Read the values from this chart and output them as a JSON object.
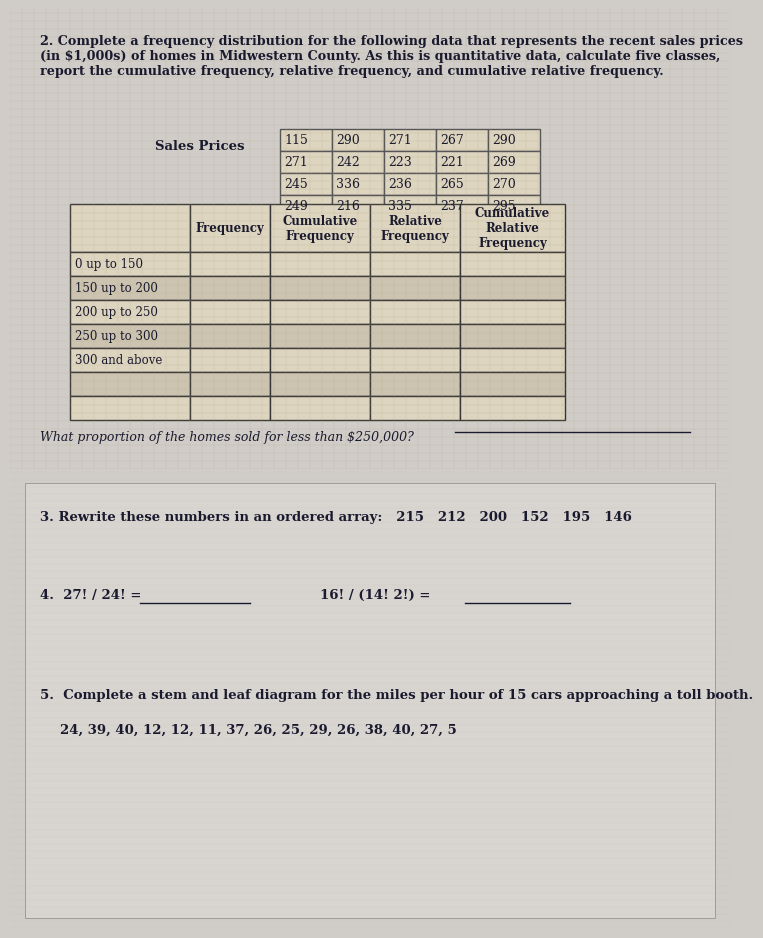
{
  "top_bg_color": "#c8b89a",
  "bottom_bg_color": "#d0ccc8",
  "q2_title": "2. Complete a frequency distribution for the following data that represents the recent sales prices\n(in $1,000s) of homes in Midwestern County. As this is quantitative data, calculate five classes,\nreport the cumulative frequency, relative frequency, and cumulative relative frequency.",
  "sales_prices_label": "Sales Prices",
  "sales_data": [
    [
      "115",
      "290",
      "271",
      "267",
      "290"
    ],
    [
      "271",
      "242",
      "223",
      "221",
      "269"
    ],
    [
      "245",
      "336",
      "236",
      "265",
      "270"
    ],
    [
      "249",
      "216",
      "335",
      "237",
      "295"
    ]
  ],
  "freq_table_headers": [
    "",
    "Frequency",
    "Cumulative\nFrequency",
    "Relative\nFrequency",
    "Cumulative\nRelative\nFrequency"
  ],
  "freq_table_rows": [
    "0 up to 150",
    "150 up to 200",
    "200 up to 250",
    "250 up to 300",
    "300 and above"
  ],
  "proportion_question": "What proportion of the homes sold for less than $250,000?",
  "q3_text": "3. Rewrite these numbers in an ordered array:   215   212   200   152   195   146",
  "q4_text": "4.  27! / 24! =",
  "q4_blank": "___________",
  "q4b_text": "16! / (14! 2!) =",
  "q4b_blank": "___________",
  "q5_text": "5.  Complete a stem and leaf diagram for the miles per hour of 15 cars approaching a toll booth.",
  "q5_data": "24, 39, 40, 12, 12, 11, 37, 26, 25, 29, 26, 38, 40, 27, 5",
  "text_color": "#1a1a2e",
  "table_border_color": "#333333",
  "table_fill_light": "#e8e0d0",
  "header_fontsize": 9,
  "body_fontsize": 9,
  "title_fontsize": 10
}
